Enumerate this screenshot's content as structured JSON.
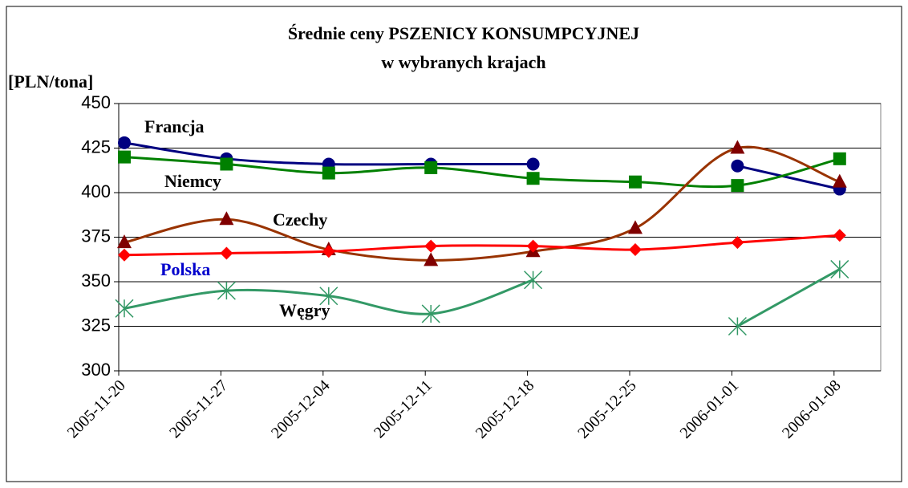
{
  "chart_data": {
    "type": "line",
    "title": "Średnie ceny PSZENICY KONSUMPCYJNEJ",
    "subtitle": "w wybranych krajach",
    "y_label": "[PLN/tona]",
    "x": [
      "2005-11-20",
      "2005-11-27",
      "2005-12-04",
      "2005-12-11",
      "2005-12-18",
      "2005-12-25",
      "2006-01-01",
      "2006-01-08"
    ],
    "ylim": [
      300,
      450
    ],
    "yticks": [
      300,
      325,
      350,
      375,
      400,
      425,
      450
    ],
    "grid": true,
    "smooth": true,
    "series": [
      {
        "name": "Francja",
        "color": "#000080",
        "marker": "circle",
        "values": [
          428,
          419,
          416,
          416,
          416,
          null,
          415,
          402
        ]
      },
      {
        "name": "Niemcy",
        "color": "#008000",
        "marker": "square",
        "values": [
          420,
          416,
          411,
          414,
          408,
          406,
          404,
          419
        ]
      },
      {
        "name": "Czechy",
        "color": "#993300",
        "marker_color": "#800000",
        "marker": "triangle",
        "values": [
          372,
          385,
          368,
          362,
          367,
          380,
          425,
          406
        ]
      },
      {
        "name": "Polska",
        "color": "#ff0000",
        "label_color": "#0000cc",
        "marker": "diamond",
        "values": [
          365,
          366,
          367,
          370,
          370,
          368,
          372,
          376
        ]
      },
      {
        "name": "Węgry",
        "color": "#339966",
        "marker": "star",
        "values": [
          335,
          345,
          342,
          332,
          351,
          null,
          325,
          357
        ]
      }
    ]
  }
}
